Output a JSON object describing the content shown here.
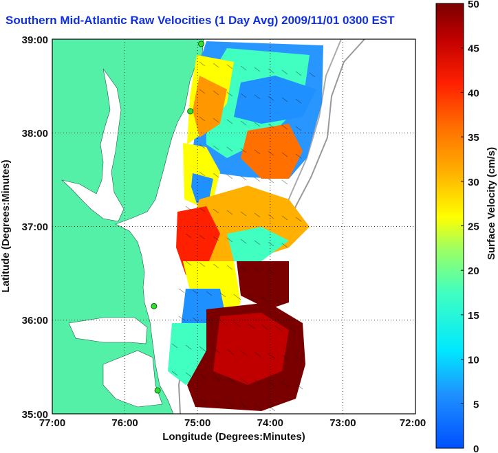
{
  "title": "Southern Mid-Atlantic Raw Velocities (1 Day Avg) 2009/11/01 0300 EST",
  "x_axis": {
    "label": "Longitude (Degrees:Minutes)",
    "ticks": [
      "77:00",
      "76:00",
      "75:00",
      "74:00",
      "73:00",
      "72:00"
    ]
  },
  "y_axis": {
    "label": "Latitude (Degrees:Minutes)",
    "ticks": [
      "39:00",
      "38:00",
      "37:00",
      "36:00",
      "35:00"
    ]
  },
  "colorbar": {
    "label": "Surface Velocity (cm/s)",
    "ticks": [
      "50",
      "45",
      "40",
      "35",
      "30",
      "25",
      "20",
      "15",
      "10",
      "5",
      "0"
    ],
    "range": [
      0,
      50
    ],
    "colormap": "jet"
  },
  "map": {
    "lon_range": [
      -77,
      -72
    ],
    "lat_range": [
      35,
      39
    ],
    "land_color": "#55f0a8",
    "water_color": "#ffffff",
    "grid": "dotted",
    "stations": [
      {
        "lon": -74.95,
        "lat": 38.95
      },
      {
        "lon": -75.1,
        "lat": 38.23
      },
      {
        "lon": -75.6,
        "lat": 36.15
      },
      {
        "lon": -75.55,
        "lat": 35.25
      }
    ]
  }
}
